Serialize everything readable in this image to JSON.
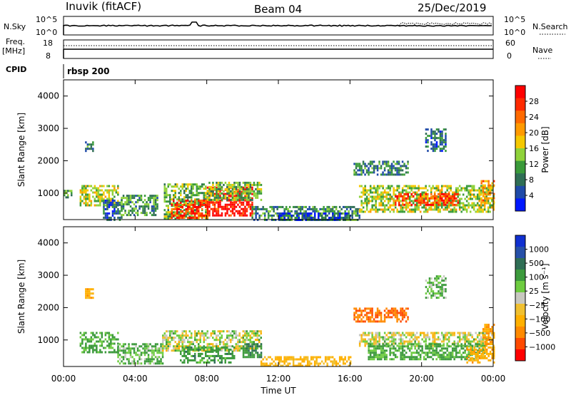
{
  "header": {
    "station": "Inuvik (fitACF)",
    "beam": "Beam 04",
    "date": "25/Dec/2019"
  },
  "top_panels": {
    "nsky": {
      "label": "N.Sky",
      "ticks": [
        "10^5",
        "10^0"
      ],
      "right_label": "N.Search",
      "right_ticks": [
        "10^5",
        "10^0"
      ]
    },
    "freq": {
      "label_line1": "Freq.",
      "label_line2": "[MHz]",
      "ticks": [
        "18",
        "8"
      ],
      "right_label": "Nave",
      "right_ticks": [
        "60",
        "0"
      ]
    },
    "cpid": {
      "label": "CPID",
      "value": "rbsp 200"
    }
  },
  "colors": {
    "power": [
      "#0018ff",
      "#1f4aa8",
      "#2f6e55",
      "#3a9a3a",
      "#8fd23a",
      "#f5c800",
      "#ff9a00",
      "#ff6a00",
      "#ff2a00",
      "#ff0000"
    ],
    "velocity_neg": [
      "#ff0000",
      "#ff4a00",
      "#ff8a00",
      "#ffb000",
      "#f0c030"
    ],
    "velocity_zero": "#c8c8c0",
    "velocity_pos": [
      "#6ecc40",
      "#3c9a3c",
      "#2f6e55",
      "#2650a8",
      "#1030d0"
    ]
  },
  "chart_data": [
    {
      "type": "heatmap",
      "name": "power",
      "x_ticks": [
        "00:00",
        "04:00",
        "08:00",
        "12:00",
        "16:00",
        "20:00",
        "00:00"
      ],
      "x_range_hours": [
        0,
        24
      ],
      "ylabel": "Slant Range [km]",
      "y_range_km": [
        180,
        4500
      ],
      "y_ticks": [
        1000,
        2000,
        3000,
        4000
      ],
      "colorbar": {
        "label": "Power [dB]",
        "ticks": [
          "28",
          "24",
          "20",
          "16",
          "12",
          "8",
          "4"
        ],
        "range": [
          0,
          30
        ]
      },
      "regions": [
        {
          "t0": 0.0,
          "t1": 0.4,
          "r0": 900,
          "r1": 1100,
          "v": 10
        },
        {
          "t0": 0.9,
          "t1": 3.0,
          "r0": 650,
          "r1": 1250,
          "v": 14
        },
        {
          "t0": 1.2,
          "t1": 1.6,
          "r0": 2300,
          "r1": 2600,
          "v": 8
        },
        {
          "t0": 2.2,
          "t1": 3.2,
          "r0": 200,
          "r1": 800,
          "v": 6
        },
        {
          "t0": 3.2,
          "t1": 5.2,
          "r0": 300,
          "r1": 950,
          "v": 10
        },
        {
          "t0": 5.6,
          "t1": 8.0,
          "r0": 220,
          "r1": 1300,
          "v": 12
        },
        {
          "t0": 6.0,
          "t1": 8.0,
          "r0": 250,
          "r1": 800,
          "v": 25
        },
        {
          "t0": 8.0,
          "t1": 10.5,
          "r0": 300,
          "r1": 1200,
          "v": 28
        },
        {
          "t0": 8.0,
          "t1": 11.0,
          "r0": 800,
          "r1": 1350,
          "v": 12
        },
        {
          "t0": 10.5,
          "t1": 16.5,
          "r0": 180,
          "r1": 600,
          "v": 9
        },
        {
          "t0": 12.0,
          "t1": 15.8,
          "r0": 180,
          "r1": 400,
          "v": 5
        },
        {
          "t0": 16.2,
          "t1": 19.2,
          "r0": 1600,
          "r1": 2000,
          "v": 8
        },
        {
          "t0": 16.5,
          "t1": 24.0,
          "r0": 400,
          "r1": 1250,
          "v": 14
        },
        {
          "t0": 18.5,
          "t1": 22.0,
          "r0": 650,
          "r1": 1000,
          "v": 25
        },
        {
          "t0": 20.2,
          "t1": 21.3,
          "r0": 2300,
          "r1": 3000,
          "v": 7
        },
        {
          "t0": 23.3,
          "t1": 24.0,
          "r0": 700,
          "r1": 1400,
          "v": 20
        }
      ]
    },
    {
      "type": "heatmap",
      "name": "velocity",
      "x_ticks": [
        "00:00",
        "04:00",
        "08:00",
        "12:00",
        "16:00",
        "20:00",
        "00:00"
      ],
      "x_range_hours": [
        0,
        24
      ],
      "xlabel": "Time UT",
      "ylabel": "Slant Range [km]",
      "y_range_km": [
        180,
        4500
      ],
      "y_ticks": [
        1000,
        2000,
        3000,
        4000
      ],
      "colorbar": {
        "label": "Velocity [m s⁻¹]",
        "ticks": [
          "1000",
          "500",
          "100",
          "25",
          "−25",
          "−100",
          "−500",
          "−1000"
        ],
        "range": [
          -1000,
          1000
        ]
      },
      "regions": [
        {
          "t0": 0.9,
          "t1": 3.0,
          "r0": 650,
          "r1": 1250,
          "v": 150
        },
        {
          "t0": 1.2,
          "t1": 1.6,
          "r0": 2300,
          "r1": 2600,
          "v": -200
        },
        {
          "t0": 3.0,
          "t1": 5.5,
          "r0": 300,
          "r1": 900,
          "v": 100
        },
        {
          "t0": 5.5,
          "t1": 11.0,
          "r0": 700,
          "r1": 1300,
          "v": 0
        },
        {
          "t0": 6.5,
          "t1": 9.5,
          "r0": 300,
          "r1": 800,
          "v": 200
        },
        {
          "t0": 10.0,
          "t1": 11.0,
          "r0": 500,
          "r1": 900,
          "v": 300
        },
        {
          "t0": 11.0,
          "t1": 16.0,
          "r0": 180,
          "r1": 500,
          "v": -150
        },
        {
          "t0": 16.2,
          "t1": 19.2,
          "r0": 1600,
          "r1": 2000,
          "v": -500
        },
        {
          "t0": 16.5,
          "t1": 24.0,
          "r0": 800,
          "r1": 1250,
          "v": 0
        },
        {
          "t0": 17.0,
          "t1": 23.5,
          "r0": 400,
          "r1": 900,
          "v": 150
        },
        {
          "t0": 20.2,
          "t1": 21.3,
          "r0": 2300,
          "r1": 3000,
          "v": 100
        },
        {
          "t0": 22.5,
          "t1": 24.0,
          "r0": 300,
          "r1": 800,
          "v": -200
        },
        {
          "t0": 23.4,
          "t1": 24.0,
          "r0": 900,
          "r1": 1500,
          "v": -300
        }
      ]
    }
  ]
}
